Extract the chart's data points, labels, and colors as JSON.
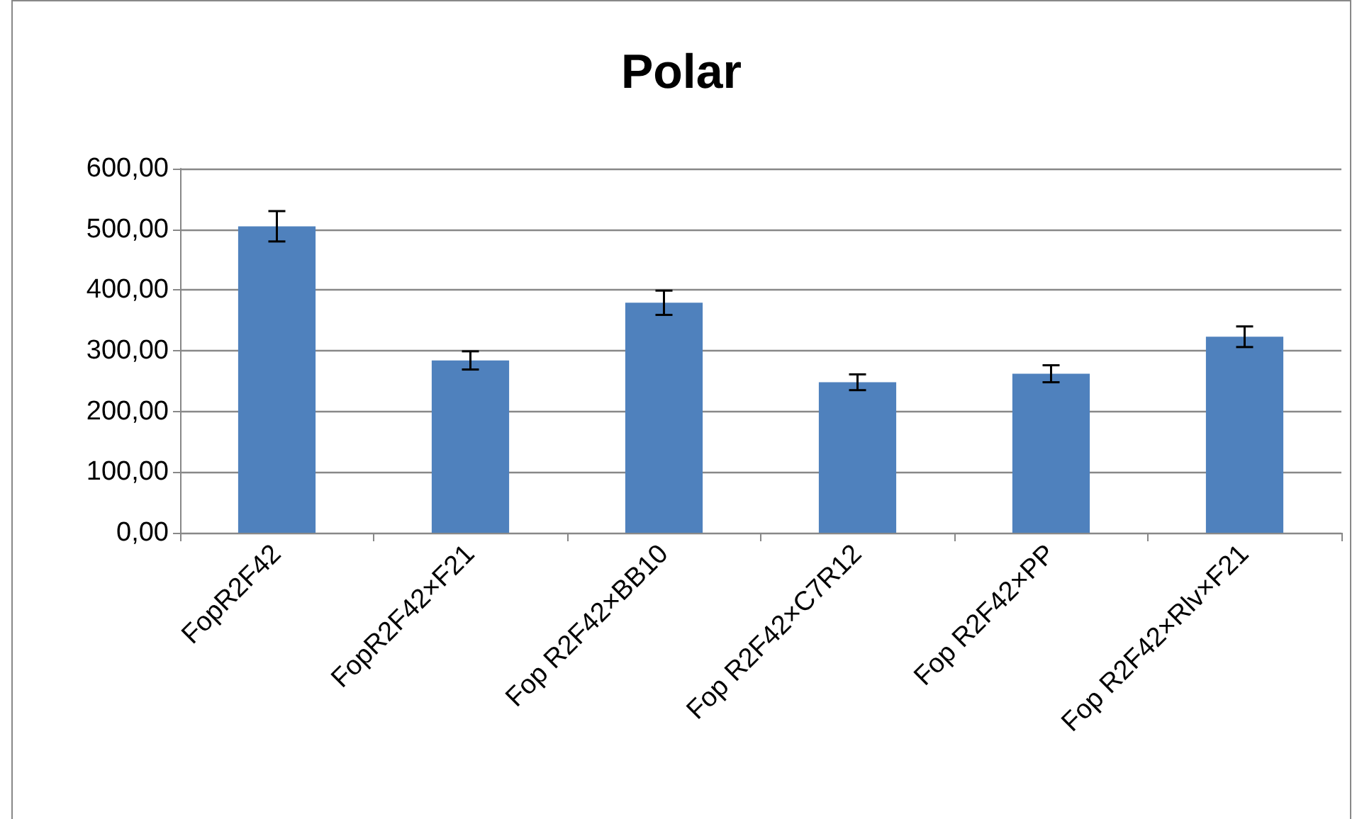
{
  "chart_data": {
    "type": "bar",
    "title": "Polar",
    "categories": [
      "FopR2F42",
      "FopR2F42×F21",
      "Fop R2F42×BB10",
      "Fop R2F42×C7R12",
      "Fop R2F42×PP",
      "Fop R2F42×Rlv×F21"
    ],
    "values": [
      505,
      284,
      379,
      248,
      262,
      323
    ],
    "errors": [
      25,
      15,
      20,
      13,
      14,
      17
    ],
    "color": "#4f81bd",
    "ylim": [
      0,
      600
    ],
    "yticks": [
      {
        "value": 0,
        "label": "0,00"
      },
      {
        "value": 100,
        "label": "100,00"
      },
      {
        "value": 200,
        "label": "200,00"
      },
      {
        "value": 300,
        "label": "300,00"
      },
      {
        "value": 400,
        "label": "400,00"
      },
      {
        "value": 500,
        "label": "500,00"
      },
      {
        "value": 600,
        "label": "600,00"
      }
    ],
    "grid": "y"
  }
}
